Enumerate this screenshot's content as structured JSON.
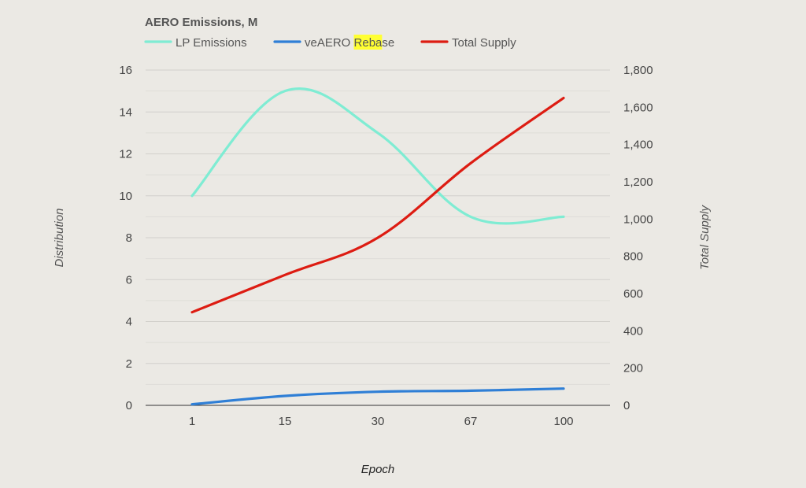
{
  "chart_data": {
    "type": "line",
    "title": "AERO Emissions, M",
    "xlabel": "Epoch",
    "ylabel": "Distribution",
    "y2label": "Total Supply",
    "categories": [
      "1",
      "15",
      "30",
      "67",
      "100"
    ],
    "ylim": [
      0,
      16
    ],
    "y2lim": [
      0,
      1800
    ],
    "yticks": [
      "0",
      "2",
      "4",
      "6",
      "8",
      "10",
      "12",
      "14",
      "16"
    ],
    "y2ticks": [
      "0",
      "200",
      "400",
      "600",
      "800",
      "1,000",
      "1,200",
      "1,400",
      "1,600",
      "1,800"
    ],
    "legend_position": "top",
    "series": [
      {
        "name": "LP Emissions",
        "axis": "left",
        "color": "#7fecd3",
        "values": [
          10.0,
          15.0,
          13.0,
          9.0,
          9.0
        ]
      },
      {
        "name": "veAERO Rebase",
        "axis": "left",
        "color": "#2f7fd6",
        "values": [
          0.05,
          0.45,
          0.65,
          0.7,
          0.8
        ]
      },
      {
        "name": "Total Supply",
        "axis": "right",
        "color": "#dd1c12",
        "values": [
          500,
          700,
          900,
          1300,
          1650
        ]
      }
    ],
    "highlight": {
      "series": "veAERO Rebase",
      "text": "Reba",
      "color": "#ffff33"
    }
  }
}
